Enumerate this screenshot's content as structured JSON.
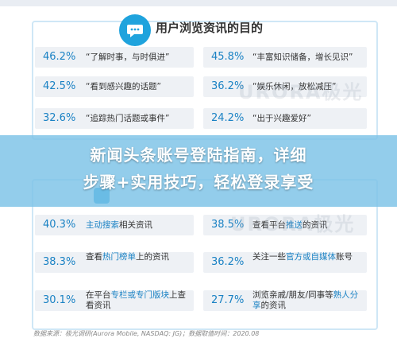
{
  "title": "用户浏览资讯的目的",
  "headline": [
    "新闻头条账号登陆指南，详细",
    "步骤+实用技巧，轻松登录享受"
  ],
  "source": "数据来源：极光调研(Aurora Mobile, NASDAQ: JG)；数据取值时间：2020.08",
  "watermark": "URORA极光",
  "colors": {
    "accent": "#1a82c4",
    "frame": "#cfe7f6",
    "cell": "#eef1f5",
    "overlay": "#7bc2e6"
  },
  "chart_data": [
    {
      "type": "table",
      "title": "用户浏览资讯的目的",
      "rows": [
        {
          "left_value": "46.2%",
          "left_label": "“了解时事，与时俱进”",
          "right_value": "45.8%",
          "right_label": "“丰富知识储备，增长见识”"
        },
        {
          "left_value": "42.5%",
          "left_label": "“看到感兴趣的话题”",
          "right_value": "36.2%",
          "right_label": "“娱乐休闲，放松减压”"
        },
        {
          "left_value": "32.6%",
          "left_label": "“追踪热门话题或事件”",
          "right_value": "24.2%",
          "right_label": "“出于兴趣爱好”"
        }
      ]
    },
    {
      "type": "table",
      "rows": [
        {
          "left_value": "40.3%",
          "left_parts": [
            {
              "t": "主动搜索",
              "hl": true
            },
            {
              "t": "相关资讯",
              "hl": false
            }
          ],
          "right_value": "38.5%",
          "right_parts": [
            {
              "t": "查看平台",
              "hl": false
            },
            {
              "t": "推送",
              "hl": true
            },
            {
              "t": "的资讯",
              "hl": false
            }
          ]
        },
        {
          "left_value": "38.3%",
          "left_parts": [
            {
              "t": "查看",
              "hl": false
            },
            {
              "t": "热门榜单",
              "hl": true
            },
            {
              "t": "上的资讯",
              "hl": false
            }
          ],
          "right_value": "36.2%",
          "right_parts": [
            {
              "t": "关注一些",
              "hl": false
            },
            {
              "t": "官方或自媒体",
              "hl": true
            },
            {
              "t": "账号",
              "hl": false
            }
          ]
        },
        {
          "left_value": "30.1%",
          "left_parts": [
            {
              "t": "在平台",
              "hl": false
            },
            {
              "t": "专栏或专门版块",
              "hl": true
            },
            {
              "t": "上查看资讯",
              "hl": false
            }
          ],
          "right_value": "27.7%",
          "right_parts": [
            {
              "t": "浏览亲戚/朋友/同事等",
              "hl": false
            },
            {
              "t": "熟人分享",
              "hl": true
            },
            {
              "t": "的资讯",
              "hl": false
            }
          ]
        }
      ]
    }
  ]
}
